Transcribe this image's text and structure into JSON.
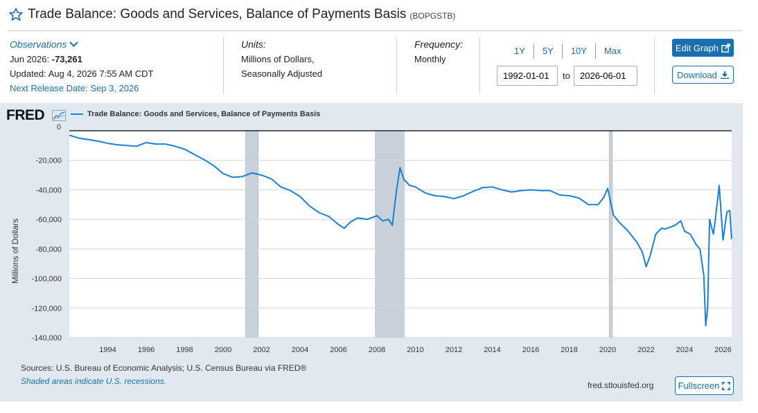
{
  "header": {
    "title": "Trade Balance: Goods and Services, Balance of Payments Basis",
    "series_id": "(BOPGSTB)"
  },
  "observations": {
    "label": "Observations",
    "latest_date": "Jun 2026:",
    "latest_value": "-73,261",
    "updated": "Updated: Aug 4, 2026 7:55 AM CDT",
    "next_release": "Next Release Date: Sep 3, 2026"
  },
  "units": {
    "label": "Units:",
    "line1": "Millions of Dollars,",
    "line2": "Seasonally Adjusted"
  },
  "frequency": {
    "label": "Frequency:",
    "value": "Monthly"
  },
  "range_buttons": [
    "1Y",
    "5Y",
    "10Y",
    "Max"
  ],
  "date_range": {
    "start": "1992-01-01",
    "to_label": "to",
    "end": "2026-06-01"
  },
  "buttons": {
    "edit_graph": "Edit Graph",
    "download": "Download",
    "fullscreen": "Fullscreen"
  },
  "icons": [
    "star-icon",
    "chevron-down-icon",
    "edit-icon",
    "download-icon",
    "fullscreen-icon",
    "fred-chart-icon"
  ],
  "colors": {
    "accent": "#1a6fb0",
    "series": "#1a7fd6",
    "panel": "#e1e9f0",
    "recession": "#c8d0da"
  },
  "chart": {
    "logo": "FRED",
    "legend": "Trade Balance: Goods and Services, Balance of Payments Basis",
    "ylabel": "Millions of Dollars",
    "sources": "Sources: U.S. Bureau of Economic Analysis; U.S. Census Bureau via FRED®",
    "shading_note": "Shaded areas indicate U.S. recessions.",
    "site": "fred.stlouisfed.org"
  },
  "chart_data": {
    "type": "line",
    "title": "",
    "xlabel": "",
    "ylabel": "Millions of Dollars",
    "xlim": [
      1992.0,
      2026.45
    ],
    "ylim": [
      -140000,
      0
    ],
    "y_ticks": [
      0,
      -20000,
      -40000,
      -60000,
      -80000,
      -100000,
      -120000,
      -140000
    ],
    "y_tick_labels": [
      "0",
      "-20,000",
      "-40,000",
      "-60,000",
      "-80,000",
      "-100,000",
      "-120,000",
      "-140,000"
    ],
    "x_ticks": [
      1994,
      1996,
      1998,
      2000,
      2002,
      2004,
      2006,
      2008,
      2010,
      2012,
      2014,
      2016,
      2018,
      2020,
      2022,
      2024,
      2026
    ],
    "x_tick_labels": [
      "1994",
      "1996",
      "1998",
      "2000",
      "2002",
      "2004",
      "2006",
      "2008",
      "2010",
      "2012",
      "2014",
      "2016",
      "2018",
      "2020",
      "2022",
      "2024",
      "2026"
    ],
    "recessions": [
      [
        2001.17,
        2001.83
      ],
      [
        2007.92,
        2009.42
      ],
      [
        2020.08,
        2020.25
      ]
    ],
    "grid": true,
    "series": [
      {
        "x": [
          1992.0,
          1992.5,
          1993.0,
          1993.5,
          1994.0,
          1994.5,
          1995.0,
          1995.5,
          1996.0,
          1996.5,
          1997.0,
          1997.5,
          1998.0,
          1998.5,
          1999.0,
          1999.5,
          2000.0,
          2000.5,
          2001.0,
          2001.5,
          2002.0,
          2002.5,
          2003.0,
          2003.5,
          2004.0,
          2004.5,
          2005.0,
          2005.5,
          2006.0,
          2006.3,
          2006.6,
          2007.0,
          2007.5,
          2008.0,
          2008.3,
          2008.6,
          2008.8,
          2009.0,
          2009.2,
          2009.4,
          2009.7,
          2010.0,
          2010.5,
          2011.0,
          2011.5,
          2012.0,
          2012.5,
          2013.0,
          2013.5,
          2014.0,
          2014.5,
          2015.0,
          2015.5,
          2016.0,
          2016.5,
          2017.0,
          2017.5,
          2018.0,
          2018.5,
          2019.0,
          2019.5,
          2019.8,
          2020.0,
          2020.3,
          2020.6,
          2021.0,
          2021.5,
          2021.8,
          2022.0,
          2022.2,
          2022.5,
          2022.8,
          2023.0,
          2023.5,
          2023.8,
          2024.0,
          2024.3,
          2024.6,
          2024.8,
          2025.0,
          2025.1,
          2025.2,
          2025.3,
          2025.5,
          2025.6,
          2025.8,
          2026.0,
          2026.2,
          2026.35,
          2026.45
        ],
        "values": [
          -3000,
          -5000,
          -6000,
          -7000,
          -8500,
          -9500,
          -10000,
          -10500,
          -8000,
          -9000,
          -9000,
          -10500,
          -12500,
          -16000,
          -19500,
          -23500,
          -29000,
          -31500,
          -31000,
          -28500,
          -30000,
          -32500,
          -38000,
          -40500,
          -44500,
          -51000,
          -55500,
          -58000,
          -63500,
          -66000,
          -62000,
          -59000,
          -60000,
          -57500,
          -61000,
          -60000,
          -64000,
          -42000,
          -25000,
          -33000,
          -37000,
          -38000,
          -42000,
          -44000,
          -44500,
          -46000,
          -44000,
          -41000,
          -38500,
          -38000,
          -40000,
          -41500,
          -40500,
          -40000,
          -40500,
          -40500,
          -43500,
          -44000,
          -45500,
          -50000,
          -50000,
          -45000,
          -39000,
          -57000,
          -62000,
          -67000,
          -75000,
          -82000,
          -92000,
          -85000,
          -70000,
          -66000,
          -66500,
          -64000,
          -61000,
          -68000,
          -70000,
          -77000,
          -80000,
          -98000,
          -132000,
          -120000,
          -60000,
          -70000,
          -60000,
          -37000,
          -74000,
          -55000,
          -54000,
          -73261
        ]
      }
    ]
  }
}
